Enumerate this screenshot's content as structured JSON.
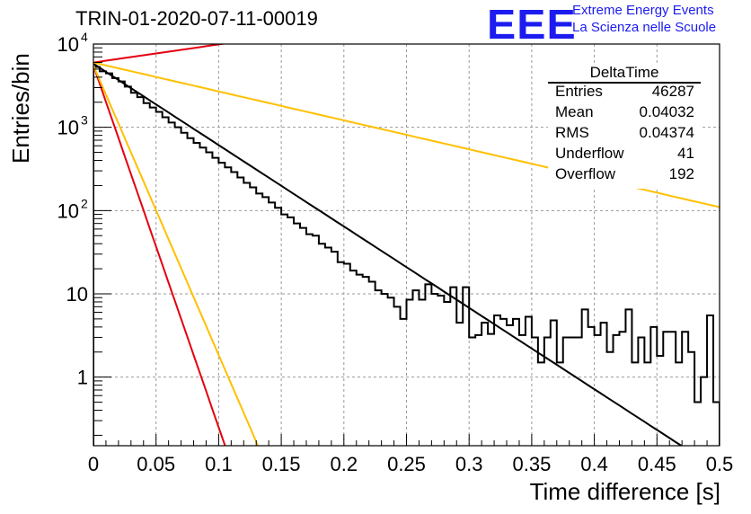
{
  "title": "TRIN-01-2020-07-11-00019",
  "logo": {
    "mark": "EEE",
    "line1": "Extreme Energy Events",
    "line2": "La Scienza nelle Scuole",
    "color": "#1c1cf0"
  },
  "stats_box": {
    "title": "DeltaTime",
    "rows": [
      {
        "label": "Entries",
        "value": "46287"
      },
      {
        "label": "Mean",
        "value": "0.04032"
      },
      {
        "label": "RMS",
        "value": "0.04374"
      },
      {
        "label": "Underflow",
        "value": "41"
      },
      {
        "label": "Overflow",
        "value": "192"
      }
    ]
  },
  "chart_data": {
    "type": "histogram",
    "xlabel": "Time difference [s]",
    "ylabel": "Entries/bin",
    "xlim": [
      0,
      0.5
    ],
    "ylim": [
      0.15,
      10000
    ],
    "yscale": "log",
    "grid": true,
    "bin_width": 0.005,
    "x_ticks": [
      "0",
      "0.05",
      "0.1",
      "0.15",
      "0.2",
      "0.25",
      "0.3",
      "0.35",
      "0.4",
      "0.45",
      "0.5"
    ],
    "y_ticks": [
      {
        "value": 1,
        "label": "1"
      },
      {
        "value": 10,
        "label": "10"
      },
      {
        "value": 100,
        "label": "10",
        "exp": "2"
      },
      {
        "value": 1000,
        "label": "10",
        "exp": "3"
      },
      {
        "value": 10000,
        "label": "10",
        "exp": "4"
      }
    ],
    "bin_counts": [
      5300,
      4700,
      4450,
      3900,
      3550,
      3080,
      2600,
      2300,
      1950,
      1730,
      1530,
      1320,
      1140,
      1000,
      860,
      740,
      650,
      570,
      500,
      430,
      375,
      330,
      290,
      250,
      215,
      190,
      160,
      145,
      125,
      108,
      90,
      83,
      70,
      62,
      52,
      50,
      40,
      36,
      32,
      24,
      23,
      19,
      17,
      16,
      14,
      11,
      10,
      9,
      7,
      5,
      8.5,
      11,
      8.5,
      13,
      10,
      9.5,
      8,
      12,
      4.5,
      12,
      3,
      3.2,
      4.5,
      3.3,
      5.5,
      5,
      4.2,
      5,
      3.2,
      5.3,
      3,
      1.5,
      3,
      4.8,
      1.5,
      3,
      3,
      3,
      6.5,
      4,
      3.2,
      4.5,
      2,
      3.2,
      3.5,
      6.5,
      1.5,
      3,
      1.5,
      4,
      1.8,
      3.5,
      3.5,
      1.5,
      3.5,
      2,
      0.5,
      1,
      5.5,
      0.5
    ],
    "fit_lines": [
      {
        "color": "#000000",
        "y0": 5800,
        "slope": -22.5
      },
      {
        "color": "#e4000f",
        "y0": 6000,
        "slope": 5.0
      },
      {
        "color": "#ffc000",
        "y0": 6000,
        "slope": -8.0
      },
      {
        "color": "#e4000f",
        "y0": 5500,
        "slope": -100
      },
      {
        "color": "#ffc000",
        "y0": 5500,
        "slope": -80
      }
    ]
  }
}
